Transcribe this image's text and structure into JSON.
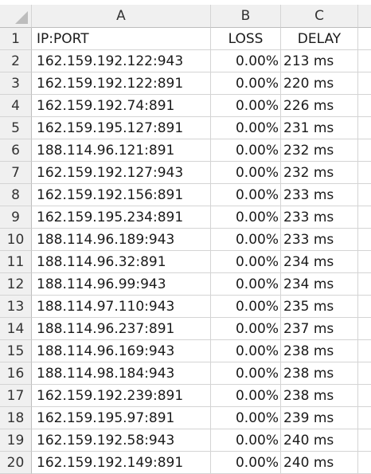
{
  "columns": [
    "A",
    "B",
    "C"
  ],
  "header_row": {
    "num": "1",
    "a": "IP:PORT",
    "b": "LOSS",
    "c": "DELAY"
  },
  "rows": [
    {
      "num": "2",
      "ip": "162.159.192.122:943",
      "loss": "0.00%",
      "delay": "213 ms"
    },
    {
      "num": "3",
      "ip": "162.159.192.122:891",
      "loss": "0.00%",
      "delay": "220 ms"
    },
    {
      "num": "4",
      "ip": "162.159.192.74:891",
      "loss": "0.00%",
      "delay": "226 ms"
    },
    {
      "num": "5",
      "ip": "162.159.195.127:891",
      "loss": "0.00%",
      "delay": "231 ms"
    },
    {
      "num": "6",
      "ip": "188.114.96.121:891",
      "loss": "0.00%",
      "delay": "232 ms"
    },
    {
      "num": "7",
      "ip": "162.159.192.127:943",
      "loss": "0.00%",
      "delay": "232 ms"
    },
    {
      "num": "8",
      "ip": "162.159.192.156:891",
      "loss": "0.00%",
      "delay": "233 ms"
    },
    {
      "num": "9",
      "ip": "162.159.195.234:891",
      "loss": "0.00%",
      "delay": "233 ms"
    },
    {
      "num": "10",
      "ip": "188.114.96.189:943",
      "loss": "0.00%",
      "delay": "233 ms"
    },
    {
      "num": "11",
      "ip": "188.114.96.32:891",
      "loss": "0.00%",
      "delay": "234 ms"
    },
    {
      "num": "12",
      "ip": "188.114.96.99:943",
      "loss": "0.00%",
      "delay": "234 ms"
    },
    {
      "num": "13",
      "ip": "188.114.97.110:943",
      "loss": "0.00%",
      "delay": "235 ms"
    },
    {
      "num": "14",
      "ip": "188.114.96.237:891",
      "loss": "0.00%",
      "delay": "237 ms"
    },
    {
      "num": "15",
      "ip": "188.114.96.169:943",
      "loss": "0.00%",
      "delay": "238 ms"
    },
    {
      "num": "16",
      "ip": "188.114.98.184:943",
      "loss": "0.00%",
      "delay": "238 ms"
    },
    {
      "num": "17",
      "ip": "162.159.192.239:891",
      "loss": "0.00%",
      "delay": "238 ms"
    },
    {
      "num": "18",
      "ip": "162.159.195.97:891",
      "loss": "0.00%",
      "delay": "239 ms"
    },
    {
      "num": "19",
      "ip": "162.159.192.58:943",
      "loss": "0.00%",
      "delay": "240 ms"
    },
    {
      "num": "20",
      "ip": "162.159.192.149:891",
      "loss": "0.00%",
      "delay": "240 ms"
    }
  ]
}
